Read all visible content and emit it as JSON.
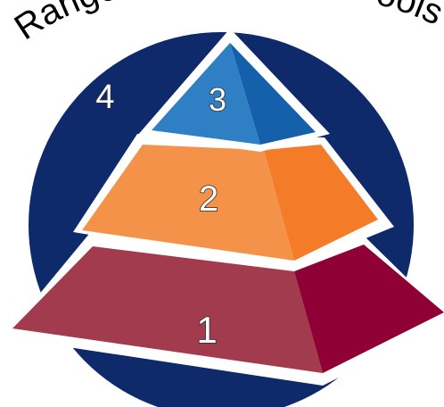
{
  "title_fragments": [
    "Range",
    "ools"
  ],
  "tiers": [
    {
      "label": "1",
      "front": "#a33b4e",
      "side": "#8f0035"
    },
    {
      "label": "2",
      "front": "#f4924a",
      "side": "#f47c28"
    },
    {
      "label": "3",
      "front": "#2e7fc4",
      "side": "#1560ab"
    }
  ],
  "outer": {
    "label": "4",
    "color": "#0e2a6b"
  }
}
